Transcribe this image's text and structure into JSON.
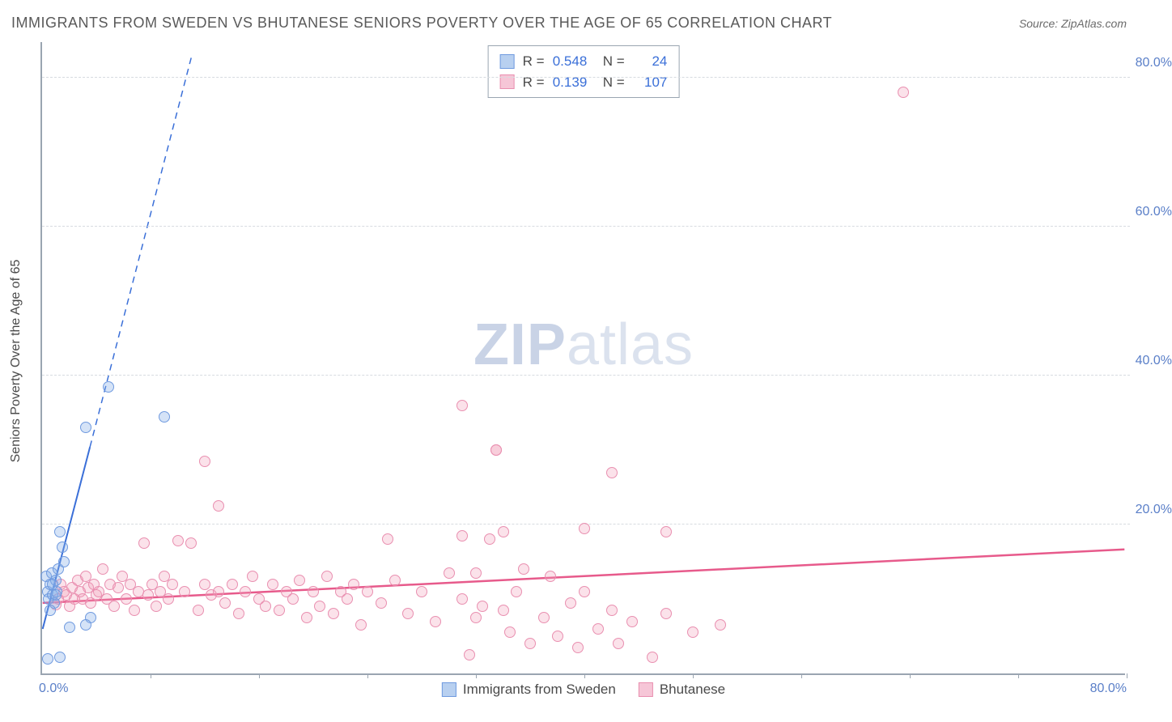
{
  "title": "IMMIGRANTS FROM SWEDEN VS BHUTANESE SENIORS POVERTY OVER THE AGE OF 65 CORRELATION CHART",
  "source": "Source: ZipAtlas.com",
  "y_axis_label": "Seniors Poverty Over the Age of 65",
  "watermark_a": "ZIP",
  "watermark_b": "atlas",
  "chart": {
    "type": "scatter",
    "xlim": [
      0,
      80
    ],
    "ylim": [
      0,
      85
    ],
    "y_ticks": [
      {
        "v": 20,
        "label": "20.0%"
      },
      {
        "v": 40,
        "label": "40.0%"
      },
      {
        "v": 60,
        "label": "60.0%"
      },
      {
        "v": 80,
        "label": "80.0%"
      }
    ],
    "x_origin_label": "0.0%",
    "x_max_label": "80.0%",
    "x_minor_ticks_pct": [
      8,
      16,
      24,
      32,
      40,
      48,
      56,
      64,
      72,
      80
    ],
    "grid_color": "#d7dbe0",
    "axis_color": "#9aa5b1",
    "background_color": "#ffffff",
    "point_radius": 7,
    "series": {
      "sweden": {
        "label": "Immigrants from Sweden",
        "fill": "rgba(135,176,232,0.35)",
        "stroke": "#6f9adf",
        "swatch_fill": "#b8d0f0",
        "swatch_border": "#6f9adf",
        "R": "0.548",
        "N": "24",
        "trend": {
          "slope": 7.0,
          "intercept": 6.0,
          "solid_xmax": 3.5,
          "dash_xmax": 11.0,
          "color": "#3a6fd8",
          "width": 2
        },
        "points": [
          [
            0.3,
            13
          ],
          [
            0.4,
            11
          ],
          [
            0.5,
            10
          ],
          [
            0.6,
            12
          ],
          [
            0.7,
            13.5
          ],
          [
            0.8,
            10.5
          ],
          [
            0.9,
            9.5
          ],
          [
            1.0,
            12.5
          ],
          [
            1.1,
            11
          ],
          [
            1.2,
            14
          ],
          [
            0.6,
            8.5
          ],
          [
            0.8,
            12
          ],
          [
            1.0,
            10.5
          ],
          [
            1.3,
            19
          ],
          [
            1.5,
            17
          ],
          [
            1.6,
            15
          ],
          [
            3.6,
            7.5
          ],
          [
            2.0,
            6.2
          ],
          [
            3.2,
            6.5
          ],
          [
            0.4,
            2.0
          ],
          [
            1.3,
            2.2
          ],
          [
            3.2,
            33
          ],
          [
            4.9,
            38.5
          ],
          [
            9.0,
            34.5
          ]
        ]
      },
      "bhutanese": {
        "label": "Bhutanese",
        "fill": "rgba(241,158,186,0.30)",
        "stroke": "#e98fb0",
        "swatch_fill": "#f6c6d7",
        "swatch_border": "#e98fb0",
        "R": "0.139",
        "N": "107",
        "trend": {
          "slope": 0.09,
          "intercept": 9.5,
          "solid_xmax": 80,
          "color": "#e75a8b",
          "width": 2.5
        },
        "points": [
          [
            1.0,
            9.2
          ],
          [
            1.2,
            10
          ],
          [
            1.4,
            12
          ],
          [
            1.6,
            11
          ],
          [
            1.8,
            10.5
          ],
          [
            2.0,
            9
          ],
          [
            2.2,
            11.5
          ],
          [
            2.4,
            10
          ],
          [
            2.6,
            12.5
          ],
          [
            2.8,
            11
          ],
          [
            3.0,
            10
          ],
          [
            3.2,
            13
          ],
          [
            3.4,
            11.5
          ],
          [
            3.6,
            9.5
          ],
          [
            3.8,
            12
          ],
          [
            4.0,
            10.5
          ],
          [
            4.2,
            11
          ],
          [
            4.5,
            14
          ],
          [
            4.8,
            10
          ],
          [
            5.0,
            12
          ],
          [
            5.3,
            9
          ],
          [
            5.6,
            11.5
          ],
          [
            5.9,
            13
          ],
          [
            6.2,
            10
          ],
          [
            6.5,
            12
          ],
          [
            6.8,
            8.5
          ],
          [
            7.1,
            11
          ],
          [
            7.5,
            17.5
          ],
          [
            7.8,
            10.5
          ],
          [
            8.1,
            12
          ],
          [
            8.4,
            9
          ],
          [
            8.7,
            11
          ],
          [
            9.0,
            13
          ],
          [
            9.3,
            10
          ],
          [
            9.6,
            12
          ],
          [
            10.0,
            17.8
          ],
          [
            10.5,
            11
          ],
          [
            11.0,
            17.5
          ],
          [
            11.5,
            8.5
          ],
          [
            12.0,
            12
          ],
          [
            12.5,
            10.5
          ],
          [
            13.0,
            11
          ],
          [
            13.0,
            22.5
          ],
          [
            13.5,
            9.5
          ],
          [
            14.0,
            12
          ],
          [
            14.5,
            8
          ],
          [
            15.0,
            11
          ],
          [
            15.5,
            13
          ],
          [
            16.0,
            10
          ],
          [
            16.5,
            9
          ],
          [
            17.0,
            12
          ],
          [
            17.5,
            8.5
          ],
          [
            18.0,
            11
          ],
          [
            18.5,
            10
          ],
          [
            19.0,
            12.5
          ],
          [
            19.5,
            7.5
          ],
          [
            20.0,
            11
          ],
          [
            20.5,
            9
          ],
          [
            21.0,
            13
          ],
          [
            21.5,
            8
          ],
          [
            22.0,
            11
          ],
          [
            22.5,
            10
          ],
          [
            23.0,
            12
          ],
          [
            23.5,
            6.5
          ],
          [
            24.0,
            11
          ],
          [
            25.0,
            9.5
          ],
          [
            25.5,
            18
          ],
          [
            26.0,
            12.5
          ],
          [
            27.0,
            8
          ],
          [
            28.0,
            11
          ],
          [
            29.0,
            7
          ],
          [
            30.0,
            13.5
          ],
          [
            31.0,
            10
          ],
          [
            31.0,
            18.5
          ],
          [
            31.5,
            2.5
          ],
          [
            32.0,
            7.5
          ],
          [
            32.0,
            13.5
          ],
          [
            32.5,
            9
          ],
          [
            33.0,
            18
          ],
          [
            33.5,
            30
          ],
          [
            34.0,
            8.5
          ],
          [
            34.0,
            19
          ],
          [
            34.5,
            5.5
          ],
          [
            35.0,
            11
          ],
          [
            35.5,
            14
          ],
          [
            36.0,
            4
          ],
          [
            37.0,
            7.5
          ],
          [
            37.5,
            13
          ],
          [
            38.0,
            5
          ],
          [
            39.0,
            9.5
          ],
          [
            39.5,
            3.5
          ],
          [
            40.0,
            11
          ],
          [
            41.0,
            6
          ],
          [
            42.0,
            8.5
          ],
          [
            42.5,
            4
          ],
          [
            43.5,
            7
          ],
          [
            45.0,
            2.2
          ],
          [
            46.0,
            8
          ],
          [
            48.0,
            5.5
          ],
          [
            50.0,
            6.5
          ],
          [
            12.0,
            28.5
          ],
          [
            31.0,
            36
          ],
          [
            33.5,
            30
          ],
          [
            40.0,
            19.5
          ],
          [
            42.0,
            27
          ],
          [
            46.0,
            19
          ],
          [
            63.5,
            78
          ]
        ]
      }
    }
  }
}
